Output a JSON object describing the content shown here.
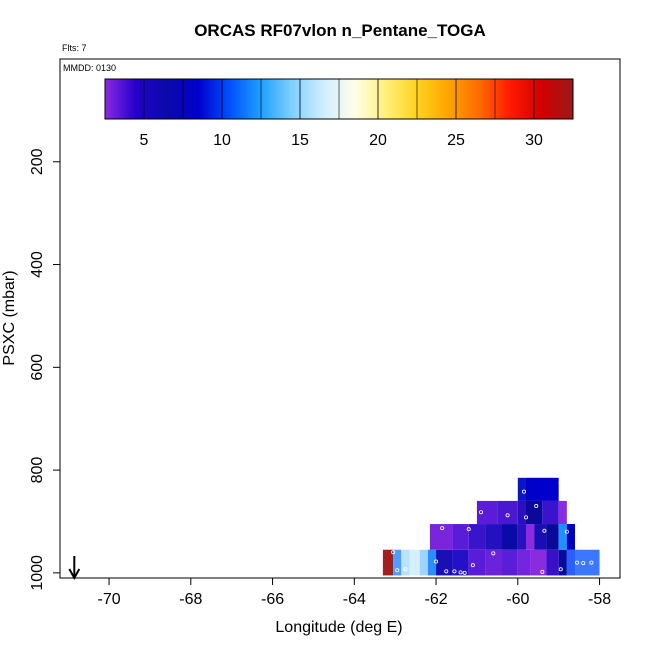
{
  "chart_data": {
    "type": "heatmap",
    "title": "ORCAS RF07vlon n_Pentane_TOGA",
    "flights_note": "Flts: 7",
    "date_note": "MMDD: 0130",
    "xlabel": "Longitude (deg E)",
    "ylabel": "PSXC (mbar)",
    "xlim": [
      -71.2,
      -57.5
    ],
    "ylim": [
      1010,
      0
    ],
    "x_ticks": [
      -70,
      -68,
      -66,
      -64,
      -62,
      -60,
      -58
    ],
    "y_ticks": [
      200,
      400,
      600,
      800,
      1000
    ],
    "colorbar": {
      "range": [
        2.5,
        32.5
      ],
      "ticks": [
        5,
        10,
        15,
        20,
        25,
        30
      ],
      "stops": [
        "#8a2be2",
        "#2200cc",
        "#0a0aa8",
        "#0000cd",
        "#0050ff",
        "#1ea0ff",
        "#7fd0ff",
        "#cfeeff",
        "#ffffe8",
        "#fff07a",
        "#ffd21e",
        "#ffa500",
        "#ff6a00",
        "#ff1a00",
        "#d10000",
        "#9b1a1a"
      ]
    },
    "arrow_x": -70.85,
    "cells": [
      {
        "x0": -63.3,
        "x1": -63.05,
        "p0": 955,
        "p1": 1005,
        "color": "#a41e1e"
      },
      {
        "x0": -63.05,
        "x1": -62.85,
        "p0": 955,
        "p1": 1005,
        "color": "#4f9dff"
      },
      {
        "x0": -62.85,
        "x1": -62.65,
        "p0": 955,
        "p1": 1005,
        "color": "#b8e2ff"
      },
      {
        "x0": -62.65,
        "x1": -62.4,
        "p0": 955,
        "p1": 1005,
        "color": "#d5efff"
      },
      {
        "x0": -62.4,
        "x1": -62.2,
        "p0": 955,
        "p1": 1005,
        "color": "#9cd6ff"
      },
      {
        "x0": -62.2,
        "x1": -62.0,
        "p0": 955,
        "p1": 1005,
        "color": "#2b8dff"
      },
      {
        "x0": -62.0,
        "x1": -61.6,
        "p0": 955,
        "p1": 1005,
        "color": "#1a0fb4"
      },
      {
        "x0": -61.6,
        "x1": -61.2,
        "p0": 955,
        "p1": 1005,
        "color": "#2310c8"
      },
      {
        "x0": -61.2,
        "x1": -60.8,
        "p0": 955,
        "p1": 1005,
        "color": "#5a1cd8"
      },
      {
        "x0": -60.8,
        "x1": -60.4,
        "p0": 955,
        "p1": 1005,
        "color": "#6a22dc"
      },
      {
        "x0": -60.4,
        "x1": -60.0,
        "p0": 955,
        "p1": 1005,
        "color": "#5b1ed8"
      },
      {
        "x0": -60.0,
        "x1": -59.7,
        "p0": 955,
        "p1": 1005,
        "color": "#7425e0"
      },
      {
        "x0": -59.7,
        "x1": -59.3,
        "p0": 955,
        "p1": 1005,
        "color": "#8a2be2"
      },
      {
        "x0": -59.3,
        "x1": -59.0,
        "p0": 955,
        "p1": 1005,
        "color": "#3810c8"
      },
      {
        "x0": -59.0,
        "x1": -58.8,
        "p0": 955,
        "p1": 1005,
        "color": "#0a0a9a"
      },
      {
        "x0": -58.8,
        "x1": -58.6,
        "p0": 955,
        "p1": 1005,
        "color": "#2a5fff"
      },
      {
        "x0": -58.6,
        "x1": -58.0,
        "p0": 955,
        "p1": 1005,
        "color": "#3a78ff"
      },
      {
        "x0": -62.15,
        "x1": -61.6,
        "p0": 905,
        "p1": 955,
        "color": "#7a25dc"
      },
      {
        "x0": -61.6,
        "x1": -61.2,
        "p0": 905,
        "p1": 955,
        "color": "#5a1cd8"
      },
      {
        "x0": -61.2,
        "x1": -60.8,
        "p0": 905,
        "p1": 955,
        "color": "#3a14cc"
      },
      {
        "x0": -60.8,
        "x1": -60.4,
        "p0": 905,
        "p1": 955,
        "color": "#2410be"
      },
      {
        "x0": -60.4,
        "x1": -60.0,
        "p0": 905,
        "p1": 955,
        "color": "#0a0aa8"
      },
      {
        "x0": -60.0,
        "x1": -59.8,
        "p0": 905,
        "p1": 955,
        "color": "#2a10c0"
      },
      {
        "x0": -59.8,
        "x1": -59.6,
        "p0": 905,
        "p1": 955,
        "color": "#8a2be2"
      },
      {
        "x0": -59.6,
        "x1": -59.3,
        "p0": 905,
        "p1": 955,
        "color": "#1a0db4"
      },
      {
        "x0": -59.3,
        "x1": -59.0,
        "p0": 905,
        "p1": 955,
        "color": "#0a0a9a"
      },
      {
        "x0": -59.0,
        "x1": -58.8,
        "p0": 905,
        "p1": 955,
        "color": "#1e90ff"
      },
      {
        "x0": -58.8,
        "x1": -58.6,
        "p0": 905,
        "p1": 955,
        "color": "#0000c0"
      },
      {
        "x0": -61.0,
        "x1": -60.5,
        "p0": 860,
        "p1": 905,
        "color": "#5a1cd8"
      },
      {
        "x0": -60.5,
        "x1": -60.0,
        "p0": 860,
        "p1": 905,
        "color": "#4a18d0"
      },
      {
        "x0": -60.0,
        "x1": -59.8,
        "p0": 860,
        "p1": 905,
        "color": "#2a10c0"
      },
      {
        "x0": -59.8,
        "x1": -59.4,
        "p0": 860,
        "p1": 905,
        "color": "#0a0a9a"
      },
      {
        "x0": -59.4,
        "x1": -59.0,
        "p0": 860,
        "p1": 905,
        "color": "#3a14cc"
      },
      {
        "x0": -59.0,
        "x1": -58.8,
        "p0": 860,
        "p1": 905,
        "color": "#8a2be2"
      },
      {
        "x0": -60.0,
        "x1": -59.8,
        "p0": 815,
        "p1": 860,
        "color": "#0a14c8"
      },
      {
        "x0": -59.8,
        "x1": -59.0,
        "p0": 815,
        "p1": 860,
        "color": "#0000cd"
      }
    ],
    "points": [
      {
        "x": -63.05,
        "p": 960
      },
      {
        "x": -62.95,
        "p": 995
      },
      {
        "x": -62.75,
        "p": 993
      },
      {
        "x": -62.0,
        "p": 978
      },
      {
        "x": -61.75,
        "p": 997
      },
      {
        "x": -61.55,
        "p": 997
      },
      {
        "x": -61.4,
        "p": 999
      },
      {
        "x": -61.3,
        "p": 1000
      },
      {
        "x": -61.1,
        "p": 985
      },
      {
        "x": -60.6,
        "p": 962
      },
      {
        "x": -59.4,
        "p": 998
      },
      {
        "x": -58.95,
        "p": 993
      },
      {
        "x": -58.55,
        "p": 980
      },
      {
        "x": -58.4,
        "p": 981
      },
      {
        "x": -58.2,
        "p": 980
      },
      {
        "x": -61.85,
        "p": 913
      },
      {
        "x": -61.2,
        "p": 915
      },
      {
        "x": -60.9,
        "p": 882
      },
      {
        "x": -60.25,
        "p": 888
      },
      {
        "x": -59.8,
        "p": 892
      },
      {
        "x": -59.55,
        "p": 870
      },
      {
        "x": -59.35,
        "p": 918
      },
      {
        "x": -58.8,
        "p": 920
      },
      {
        "x": -58.75,
        "p": 877
      },
      {
        "x": -59.85,
        "p": 842
      },
      {
        "x": -58.95,
        "p": 825
      }
    ]
  }
}
